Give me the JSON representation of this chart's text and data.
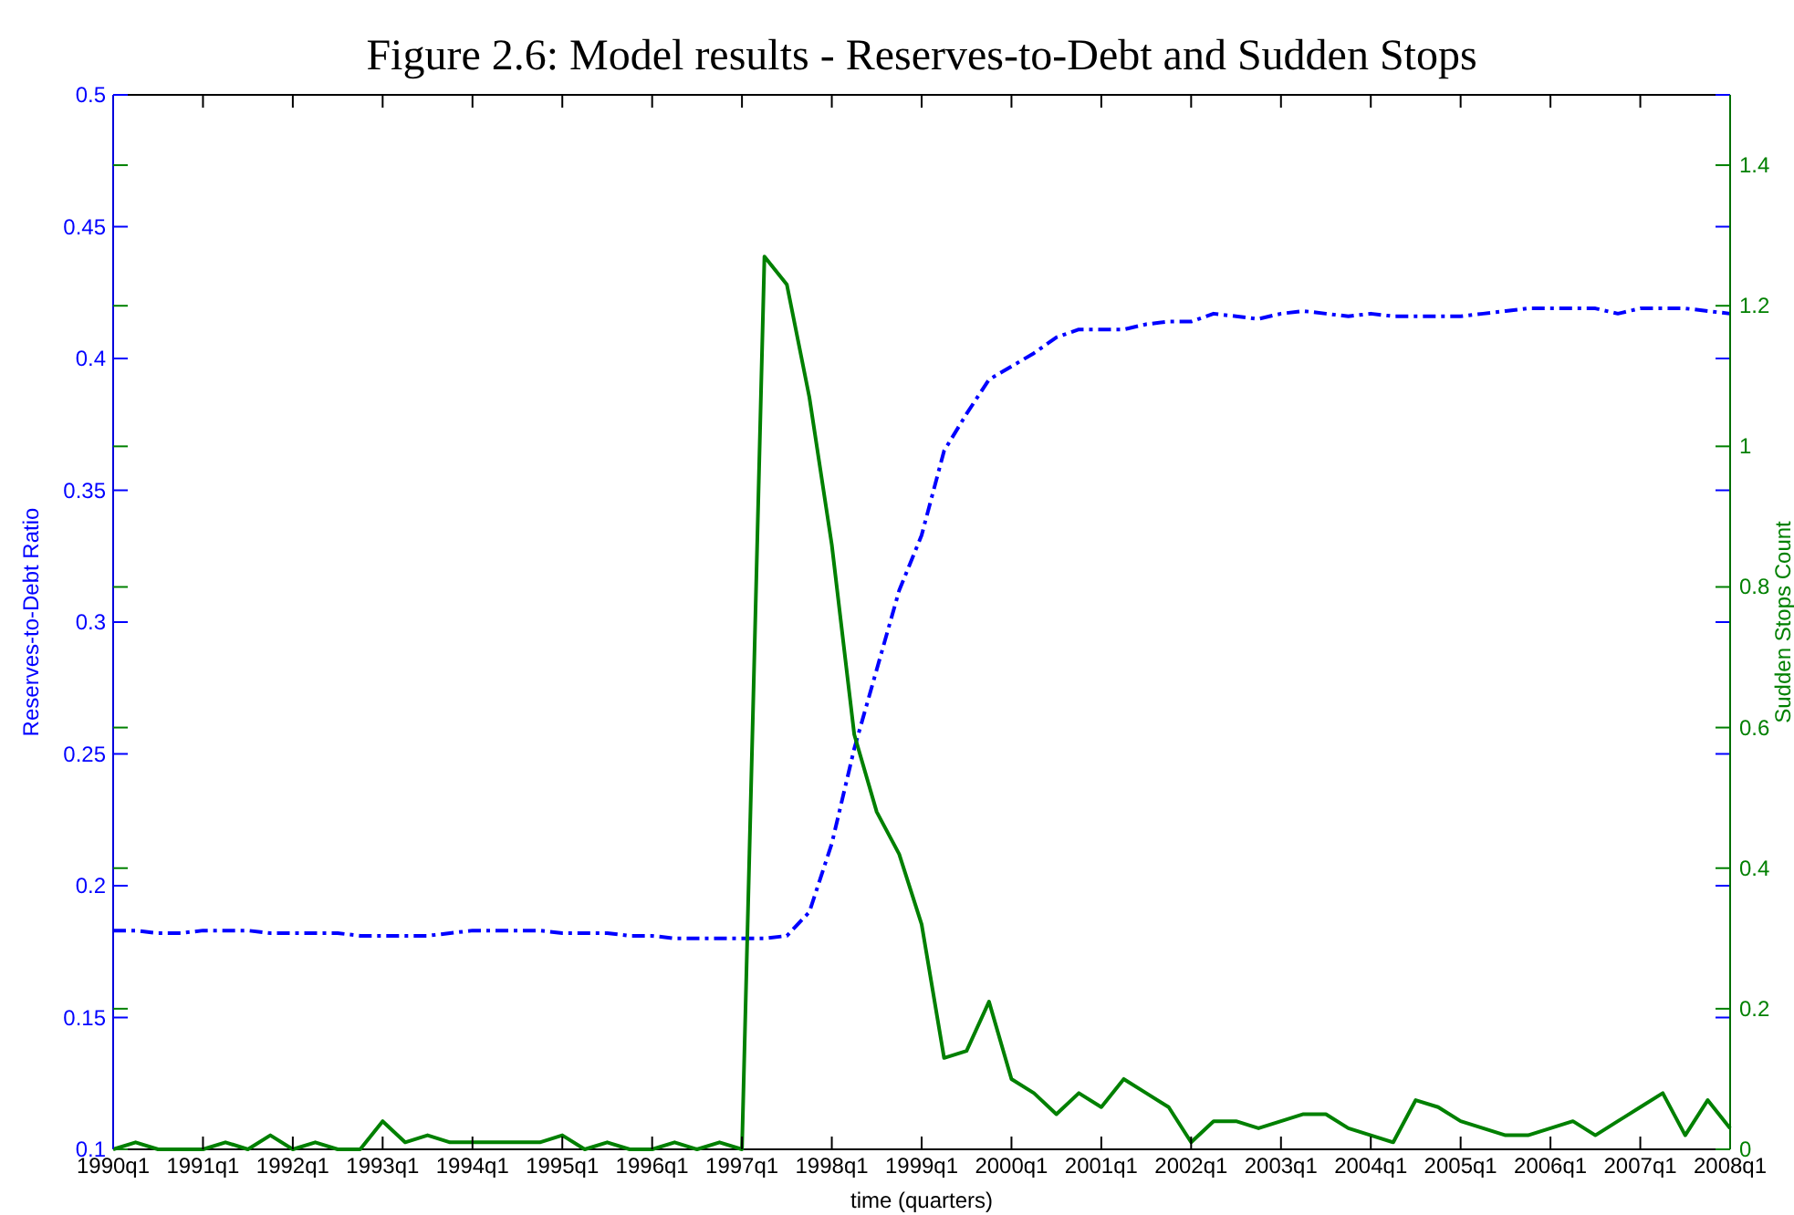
{
  "chart_data": {
    "type": "line",
    "title": "Figure 2.6: Model results - Reserves-to-Debt and Sudden Stops",
    "xlabel": "time (quarters)",
    "ylabel": "Reserves-to-Debt Ratio",
    "y2label": "Sudden Stops Count",
    "categories": [
      "1990q1",
      null,
      null,
      null,
      "1991q1",
      null,
      null,
      null,
      "1992q1",
      null,
      null,
      null,
      "1993q1",
      null,
      null,
      null,
      "1994q1",
      null,
      null,
      null,
      "1995q1",
      null,
      null,
      null,
      "1996q1",
      null,
      null,
      null,
      "1997q1",
      null,
      null,
      null,
      "1998q1",
      null,
      null,
      null,
      "1999q1",
      null,
      null,
      null,
      "2000q1",
      null,
      null,
      null,
      "2001q1",
      null,
      null,
      null,
      "2002q1",
      null,
      null,
      null,
      "2003q1",
      null,
      null,
      null,
      "2004q1",
      null,
      null,
      null,
      "2005q1",
      null,
      null,
      null,
      "2006q1",
      null,
      null,
      null,
      "2007q1",
      null,
      null,
      null,
      "2008q1"
    ],
    "series": [
      {
        "color": "#0000ff",
        "line_style": "dashed",
        "values": [
          0.183,
          0.183,
          0.182,
          0.182,
          0.183,
          0.183,
          0.183,
          0.182,
          0.182,
          0.182,
          0.182,
          0.181,
          0.181,
          0.181,
          0.181,
          0.182,
          0.183,
          0.183,
          0.183,
          0.183,
          0.182,
          0.182,
          0.182,
          0.181,
          0.181,
          0.18,
          0.18,
          0.18,
          0.18,
          0.18,
          0.181,
          0.19,
          0.216,
          0.252,
          0.282,
          0.312,
          0.333,
          0.365,
          0.379,
          0.392,
          0.397,
          0.402,
          0.408,
          0.411,
          0.411,
          0.411,
          0.413,
          0.414,
          0.414,
          0.417,
          0.416,
          0.415,
          0.417,
          0.418,
          0.417,
          0.416,
          0.417,
          0.416,
          0.416,
          0.416,
          0.416,
          0.417,
          0.418,
          0.419,
          0.419,
          0.419,
          0.419,
          0.417,
          0.419,
          0.419,
          0.419,
          0.418,
          0.417
        ]
      },
      {
        "color": "#008000",
        "line_style": "solid",
        "axis": "y2",
        "values": [
          0,
          0.01,
          0,
          0,
          0,
          0.01,
          0,
          0.02,
          0,
          0.01,
          0,
          0,
          0.04,
          0.01,
          0.02,
          0.01,
          0.01,
          0.01,
          0.01,
          0.01,
          0.02,
          0,
          0.01,
          0,
          0,
          0.01,
          0,
          0.01,
          0,
          1.27,
          1.23,
          1.07,
          0.86,
          0.59,
          0.48,
          0.42,
          0.32,
          0.13,
          0.14,
          0.21,
          0.1,
          0.08,
          0.05,
          0.08,
          0.06,
          0.1,
          0.08,
          0.06,
          0.01,
          0.04,
          0.04,
          0.03,
          0.04,
          0.05,
          0.05,
          0.03,
          0.02,
          0.01,
          0.07,
          0.06,
          0.04,
          0.03,
          0.02,
          0.02,
          0.03,
          0.04,
          0.02,
          0.04,
          0.06,
          0.08,
          0.02,
          0.07,
          0.03
        ]
      }
    ],
    "ylim": [
      0.1,
      0.5
    ],
    "yticks": [
      0.1,
      0.15,
      0.2,
      0.25,
      0.3,
      0.35,
      0.4,
      0.45,
      0.5
    ],
    "y2lim": [
      0,
      1.5
    ],
    "y2ticks": [
      0,
      0.2,
      0.4,
      0.6,
      0.8,
      1,
      1.2,
      1.4
    ],
    "grid": false
  }
}
